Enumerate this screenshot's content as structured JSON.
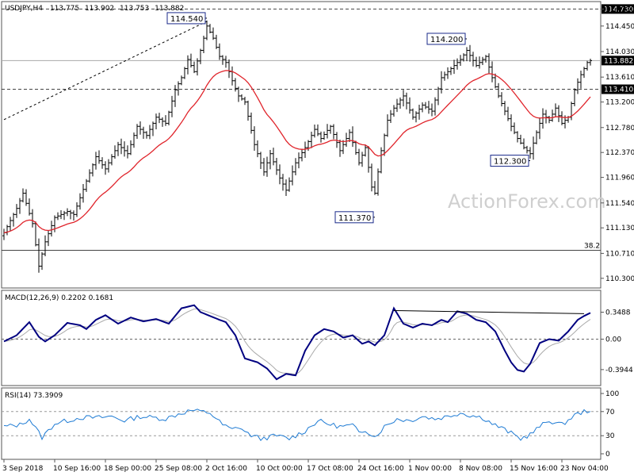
{
  "chart_data": [
    {
      "type": "candlestick",
      "panel": "price",
      "header": {
        "symbol": "USDJPY,H4",
        "open": "113.775",
        "high": "113.902",
        "low": "113.753",
        "close": "113.882"
      },
      "y_ticks": [
        "114.730",
        "114.450",
        "114.030",
        "113.610",
        "113.200",
        "112.780",
        "112.370",
        "111.960",
        "111.540",
        "111.130",
        "110.710",
        "110.300"
      ],
      "ylim": [
        110.18,
        114.8
      ],
      "current_price": "113.882",
      "levels": [
        {
          "value": 114.73,
          "label": "114.730",
          "style": "dashed"
        },
        {
          "value": 113.41,
          "label": "113.410",
          "style": "dashed"
        },
        {
          "value": 110.76,
          "label": "38.2",
          "style": "solid"
        }
      ],
      "annotations": [
        {
          "label": "114.540",
          "index": 64,
          "value": 114.54
        },
        {
          "label": "114.200",
          "index": 146,
          "value": 114.2
        },
        {
          "label": "111.370",
          "index": 117,
          "value": 111.37
        },
        {
          "label": "112.300",
          "index": 166,
          "value": 112.3
        }
      ],
      "trendline": [
        {
          "index": 0,
          "value": 112.91
        },
        {
          "index": 64,
          "value": 114.54
        }
      ],
      "moving_average_color": "#e0242b",
      "anchors": [
        [
          0,
          111.05
        ],
        [
          4,
          111.45
        ],
        [
          6,
          111.7
        ],
        [
          9,
          111.2
        ],
        [
          11,
          110.5
        ],
        [
          13,
          110.9
        ],
        [
          16,
          111.3
        ],
        [
          20,
          111.4
        ],
        [
          22,
          111.35
        ],
        [
          26,
          111.9
        ],
        [
          29,
          112.3
        ],
        [
          32,
          112.1
        ],
        [
          36,
          112.5
        ],
        [
          39,
          112.35
        ],
        [
          42,
          112.8
        ],
        [
          45,
          112.65
        ],
        [
          48,
          112.95
        ],
        [
          51,
          112.85
        ],
        [
          54,
          113.4
        ],
        [
          56,
          113.6
        ],
        [
          58,
          113.9
        ],
        [
          60,
          113.7
        ],
        [
          62,
          114.05
        ],
        [
          64,
          114.45
        ],
        [
          66,
          114.25
        ],
        [
          68,
          113.95
        ],
        [
          70,
          113.85
        ],
        [
          72,
          113.55
        ],
        [
          74,
          113.3
        ],
        [
          76,
          113.2
        ],
        [
          79,
          112.5
        ],
        [
          82,
          112.05
        ],
        [
          84,
          112.35
        ],
        [
          87,
          111.95
        ],
        [
          89,
          111.75
        ],
        [
          92,
          112.2
        ],
        [
          95,
          112.45
        ],
        [
          98,
          112.75
        ],
        [
          100,
          112.6
        ],
        [
          103,
          112.8
        ],
        [
          106,
          112.4
        ],
        [
          109,
          112.7
        ],
        [
          112,
          112.2
        ],
        [
          114,
          112.45
        ],
        [
          116,
          111.8
        ],
        [
          117,
          111.7
        ],
        [
          119,
          112.4
        ],
        [
          121,
          112.9
        ],
        [
          123,
          113.1
        ],
        [
          126,
          113.3
        ],
        [
          129,
          112.95
        ],
        [
          132,
          113.15
        ],
        [
          135,
          113.05
        ],
        [
          138,
          113.6
        ],
        [
          141,
          113.75
        ],
        [
          144,
          113.9
        ],
        [
          146,
          114.05
        ],
        [
          149,
          113.8
        ],
        [
          152,
          113.95
        ],
        [
          154,
          113.6
        ],
        [
          156,
          113.3
        ],
        [
          158,
          113.05
        ],
        [
          160,
          112.8
        ],
        [
          162,
          112.6
        ],
        [
          164,
          112.45
        ],
        [
          166,
          112.35
        ],
        [
          168,
          112.7
        ],
        [
          170,
          113.0
        ],
        [
          172,
          112.9
        ],
        [
          174,
          113.1
        ],
        [
          176,
          112.85
        ],
        [
          178,
          112.95
        ],
        [
          180,
          113.4
        ],
        [
          182,
          113.65
        ],
        [
          184,
          113.85
        ],
        [
          185,
          113.88
        ]
      ]
    },
    {
      "type": "line",
      "panel": "macd",
      "title": "MACD(12,26,9) 0.2202 0.1681",
      "y_ticks": [
        "0.3488",
        "0.00",
        "-0.3944"
      ],
      "ylim": [
        -0.56,
        0.57
      ],
      "series": [
        {
          "role": "macd",
          "color": "#000080"
        },
        {
          "role": "signal",
          "color": "#aaaaaa"
        }
      ],
      "anchors": [
        [
          0,
          -0.03
        ],
        [
          4,
          0.05
        ],
        [
          8,
          0.22
        ],
        [
          11,
          0.03
        ],
        [
          13,
          -0.03
        ],
        [
          16,
          0.05
        ],
        [
          20,
          0.21
        ],
        [
          24,
          0.18
        ],
        [
          26,
          0.13
        ],
        [
          29,
          0.25
        ],
        [
          32,
          0.31
        ],
        [
          36,
          0.2
        ],
        [
          40,
          0.28
        ],
        [
          44,
          0.23
        ],
        [
          48,
          0.26
        ],
        [
          52,
          0.2
        ],
        [
          56,
          0.4
        ],
        [
          60,
          0.44
        ],
        [
          62,
          0.35
        ],
        [
          65,
          0.3
        ],
        [
          68,
          0.25
        ],
        [
          70,
          0.22
        ],
        [
          73,
          0.05
        ],
        [
          76,
          -0.25
        ],
        [
          80,
          -0.3
        ],
        [
          83,
          -0.38
        ],
        [
          86,
          -0.52
        ],
        [
          89,
          -0.45
        ],
        [
          92,
          -0.47
        ],
        [
          95,
          -0.15
        ],
        [
          98,
          0.05
        ],
        [
          101,
          0.13
        ],
        [
          104,
          0.1
        ],
        [
          107,
          0.02
        ],
        [
          110,
          0.05
        ],
        [
          113,
          -0.06
        ],
        [
          115,
          -0.03
        ],
        [
          117,
          -0.08
        ],
        [
          120,
          0.05
        ],
        [
          123,
          0.4
        ],
        [
          126,
          0.2
        ],
        [
          129,
          0.15
        ],
        [
          132,
          0.2
        ],
        [
          135,
          0.18
        ],
        [
          138,
          0.25
        ],
        [
          140,
          0.22
        ],
        [
          143,
          0.36
        ],
        [
          146,
          0.33
        ],
        [
          149,
          0.25
        ],
        [
          152,
          0.22
        ],
        [
          155,
          0.1
        ],
        [
          158,
          -0.15
        ],
        [
          160,
          -0.3
        ],
        [
          162,
          -0.4
        ],
        [
          164,
          -0.42
        ],
        [
          166,
          -0.32
        ],
        [
          169,
          -0.05
        ],
        [
          172,
          0.0
        ],
        [
          175,
          -0.02
        ],
        [
          178,
          0.1
        ],
        [
          181,
          0.25
        ],
        [
          183,
          0.3
        ],
        [
          185,
          0.34
        ]
      ],
      "trendline": [
        {
          "index": 123,
          "value": 0.37
        },
        {
          "index": 183,
          "value": 0.33
        }
      ]
    },
    {
      "type": "line",
      "panel": "rsi",
      "title": "RSI(14) 73.3909",
      "y_ticks": [
        "100",
        "70",
        "30",
        "0"
      ],
      "ylim": [
        0,
        100
      ],
      "levels": [
        70,
        30
      ],
      "series": [
        {
          "role": "rsi",
          "color": "#1e7bd4"
        }
      ],
      "anchors": [
        [
          0,
          45
        ],
        [
          5,
          48
        ],
        [
          8,
          58
        ],
        [
          12,
          27
        ],
        [
          16,
          50
        ],
        [
          20,
          55
        ],
        [
          24,
          60
        ],
        [
          30,
          60
        ],
        [
          34,
          62
        ],
        [
          38,
          55
        ],
        [
          43,
          62
        ],
        [
          47,
          60
        ],
        [
          51,
          58
        ],
        [
          55,
          66
        ],
        [
          59,
          72
        ],
        [
          62,
          70
        ],
        [
          65,
          68
        ],
        [
          69,
          48
        ],
        [
          72,
          40
        ],
        [
          74,
          45
        ],
        [
          77,
          33
        ],
        [
          81,
          25
        ],
        [
          86,
          30
        ],
        [
          90,
          25
        ],
        [
          95,
          38
        ],
        [
          99,
          55
        ],
        [
          102,
          50
        ],
        [
          106,
          45
        ],
        [
          110,
          47
        ],
        [
          112,
          35
        ],
        [
          114,
          40
        ],
        [
          117,
          28
        ],
        [
          120,
          45
        ],
        [
          124,
          58
        ],
        [
          128,
          55
        ],
        [
          132,
          62
        ],
        [
          136,
          58
        ],
        [
          140,
          62
        ],
        [
          144,
          68
        ],
        [
          147,
          64
        ],
        [
          151,
          60
        ],
        [
          154,
          50
        ],
        [
          158,
          40
        ],
        [
          161,
          31
        ],
        [
          163,
          25
        ],
        [
          166,
          32
        ],
        [
          169,
          45
        ],
        [
          172,
          55
        ],
        [
          176,
          48
        ],
        [
          180,
          64
        ],
        [
          183,
          70
        ],
        [
          185,
          73
        ]
      ]
    }
  ],
  "time_labels": [
    "3 Sep 2018",
    "10 Sep 16:00",
    "18 Sep 00:00",
    "25 Sep 08:00",
    "2 Oct 16:00",
    "10 Oct 00:00",
    "17 Oct 08:00",
    "24 Oct 16:00",
    "1 Nov 00:00",
    "8 Nov 08:00",
    "15 Nov 16:00",
    "23 Nov 04:00"
  ],
  "time_label_indices": [
    0,
    16,
    32,
    48,
    64,
    80,
    96,
    112,
    128,
    144,
    160,
    176
  ],
  "watermark": "ActionForex.com",
  "colors": {
    "price_bars": "#000000",
    "moving_average": "#e0242b",
    "macd_line": "#000080",
    "signal_line": "#aaaaaa",
    "rsi_line": "#1e7bd4",
    "highlight_label_bg": "#000000",
    "highlight_label_text": "#ffffff"
  }
}
